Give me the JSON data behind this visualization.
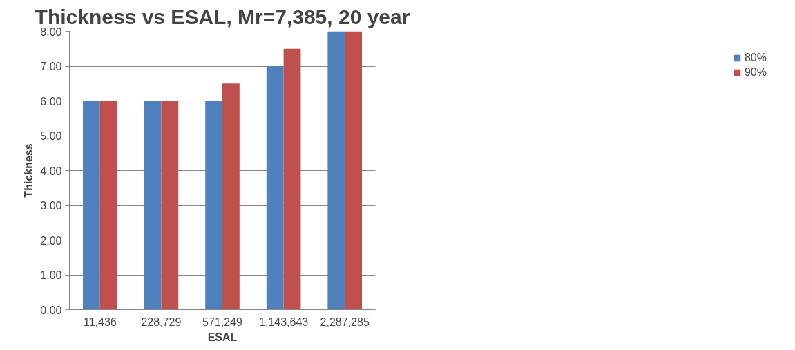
{
  "chart_data": {
    "type": "bar",
    "title": "Thickness vs ESAL, Mr=7,385, 20 year",
    "xlabel": "ESAL",
    "ylabel": "Thickness",
    "categories": [
      "11,436",
      "228,729",
      "571,249",
      "1,143,643",
      "2,287,285"
    ],
    "series": [
      {
        "name": "80%",
        "color": "#4f81bd",
        "values": [
          6,
          6,
          6,
          7,
          8
        ]
      },
      {
        "name": "90%",
        "color": "#c0504d",
        "values": [
          6,
          6,
          6.5,
          7.5,
          8
        ]
      }
    ],
    "ylim": [
      0,
      8
    ],
    "yticks": [
      {
        "value": 0,
        "label": "0.00"
      },
      {
        "value": 1,
        "label": "1.00"
      },
      {
        "value": 2,
        "label": "2.00"
      },
      {
        "value": 3,
        "label": "3.00"
      },
      {
        "value": 4,
        "label": "4.00"
      },
      {
        "value": 5,
        "label": "5.00"
      },
      {
        "value": 6,
        "label": "6.00"
      },
      {
        "value": 7,
        "label": "7.00"
      },
      {
        "value": 8,
        "label": "8.00"
      }
    ],
    "grid": "y",
    "legend": "right"
  }
}
